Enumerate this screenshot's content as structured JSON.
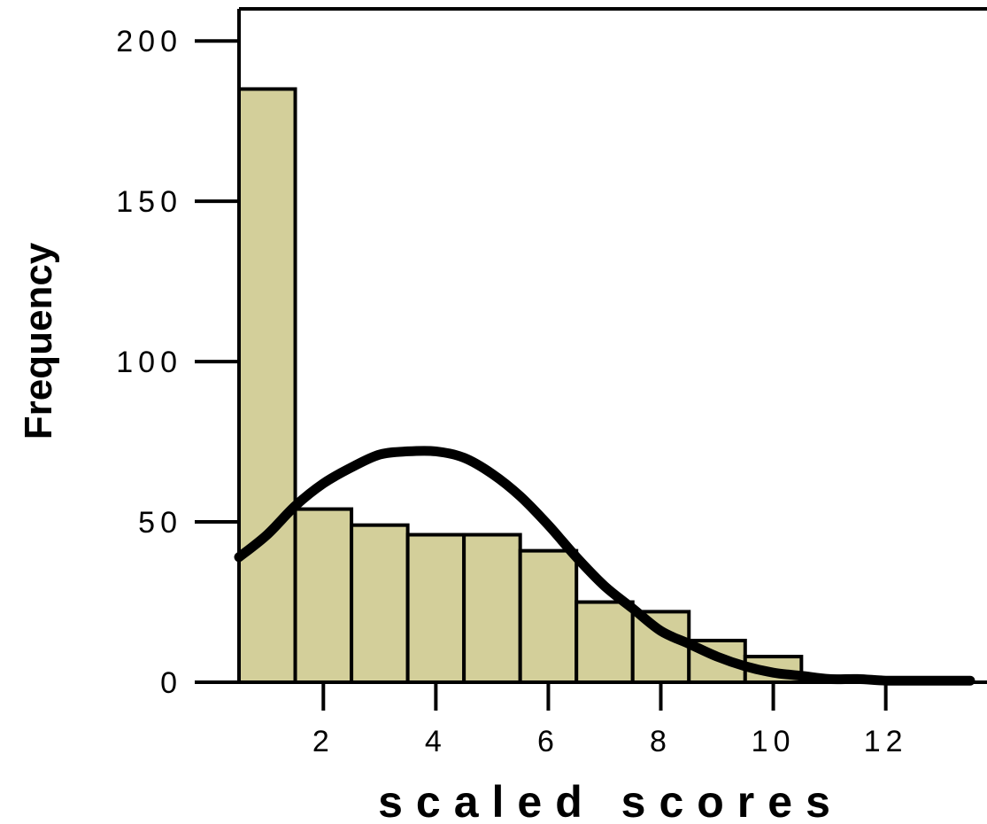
{
  "chart_data": {
    "type": "bar",
    "title": "",
    "xlabel": "scaled scores",
    "ylabel": "Frequency",
    "bins": [
      {
        "start": 0.5,
        "end": 1.5,
        "value": 185
      },
      {
        "start": 1.5,
        "end": 2.5,
        "value": 54
      },
      {
        "start": 2.5,
        "end": 3.5,
        "value": 49
      },
      {
        "start": 3.5,
        "end": 4.5,
        "value": 46
      },
      {
        "start": 4.5,
        "end": 5.5,
        "value": 46
      },
      {
        "start": 5.5,
        "end": 6.5,
        "value": 41
      },
      {
        "start": 6.5,
        "end": 7.5,
        "value": 25
      },
      {
        "start": 7.5,
        "end": 8.5,
        "value": 22
      },
      {
        "start": 8.5,
        "end": 9.5,
        "value": 13
      },
      {
        "start": 9.5,
        "end": 10.5,
        "value": 8
      }
    ],
    "normal_curve": {
      "x": [
        0.5,
        1.0,
        1.5,
        2.0,
        2.5,
        3.0,
        3.5,
        4.0,
        4.5,
        5.0,
        5.5,
        6.0,
        6.5,
        7.0,
        7.5,
        8.0,
        8.5,
        9.0,
        9.5,
        10.0,
        10.5,
        11.0,
        11.5,
        12.0,
        12.5,
        13.0,
        13.5
      ],
      "y": [
        39,
        46,
        55,
        62,
        67,
        71,
        72,
        72,
        70,
        65,
        58,
        49,
        39,
        30,
        23,
        16,
        12,
        8,
        5,
        3,
        2,
        1,
        1,
        0.5,
        0.5,
        0.5,
        0.5
      ]
    },
    "xticks": [
      2,
      4,
      6,
      8,
      10,
      12
    ],
    "xtick_labels": [
      "2",
      "4",
      "6",
      "8",
      "10",
      "12"
    ],
    "yticks": [
      0,
      50,
      100,
      150,
      200
    ],
    "ytick_labels": [
      "0",
      "50",
      "100",
      "150",
      "200"
    ],
    "xlim": [
      0.5,
      13.8
    ],
    "ylim": [
      0,
      210
    ],
    "bar_color": "#d3cf9a",
    "grid": false,
    "legend": "none"
  }
}
